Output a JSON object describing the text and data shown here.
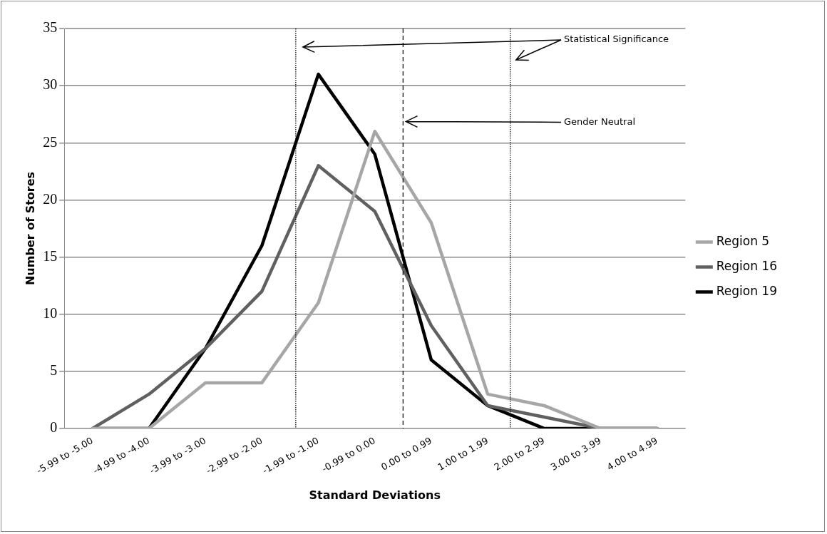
{
  "chart_data": {
    "type": "line",
    "xlabel": "Standard Deviations",
    "ylabel": "Number of Stores",
    "categories": [
      "-5.99 to -5.00",
      "-4.99 to -4.00",
      "-3.99 to -3.00",
      "-2.99 to -2.00",
      "-1.99 to -1.00",
      "-0.99 to 0.00",
      "0.00 to 0.99",
      "1.00 to 1.99",
      "2.00 to 2.99",
      "3.00 to 3.99",
      "4.00 to 4.99"
    ],
    "series": [
      {
        "name": "Region 5",
        "color": "#a6a6a6",
        "values": [
          0,
          0,
          4,
          4,
          11,
          26,
          18,
          3,
          2,
          0,
          0
        ]
      },
      {
        "name": "Region 16",
        "color": "#606060",
        "values": [
          0,
          3,
          7,
          12,
          23,
          19,
          9,
          2,
          1,
          0,
          0
        ]
      },
      {
        "name": "Region 19",
        "color": "#000000",
        "values": [
          0,
          0,
          7,
          16,
          31,
          24,
          6,
          2,
          0,
          0,
          0
        ]
      }
    ],
    "ylim": [
      0,
      35
    ],
    "yticks": [
      0,
      5,
      10,
      15,
      20,
      25,
      30,
      35
    ],
    "grid": "y",
    "legend": "right",
    "marker": "none",
    "line_style": "solid",
    "annotations": [
      "Statistical Significance",
      "Gender Neutral"
    ]
  }
}
